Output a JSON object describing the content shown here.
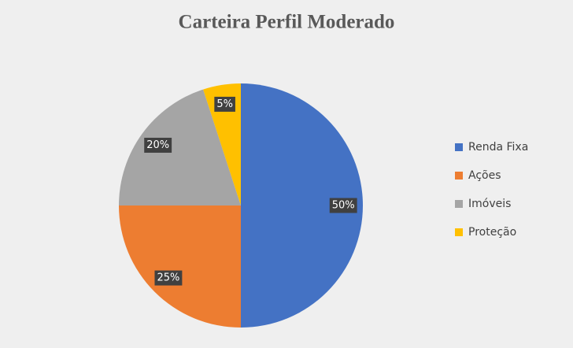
{
  "chart_data": {
    "type": "pie",
    "title": "Carteira Perfil Moderado",
    "categories": [
      "Renda Fixa",
      "Ações",
      "Imóveis",
      "Proteção"
    ],
    "values": [
      50,
      25,
      20,
      5
    ],
    "value_labels": [
      "50%",
      "25%",
      "20%",
      "5%"
    ],
    "colors": [
      "#4472c4",
      "#ed7d31",
      "#a5a5a5",
      "#ffc000"
    ],
    "legend": "right"
  }
}
